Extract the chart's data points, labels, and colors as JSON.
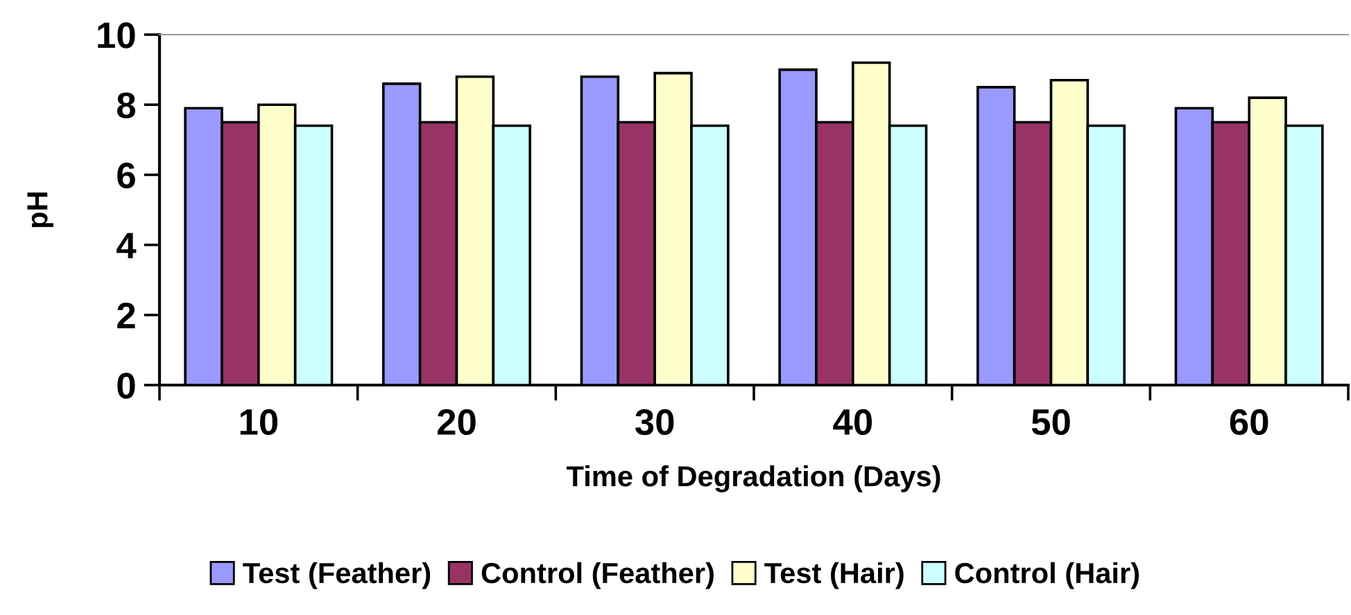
{
  "chart_data": {
    "type": "bar",
    "xlabel": "Time of Degradation (Days)",
    "ylabel": "pH",
    "categories": [
      "10",
      "20",
      "30",
      "40",
      "50",
      "60"
    ],
    "series": [
      {
        "name": "Test (Feather)",
        "color": "#9999ff",
        "values": [
          7.9,
          8.6,
          8.8,
          9.0,
          8.5,
          7.9
        ]
      },
      {
        "name": "Control (Feather)",
        "color": "#993366",
        "values": [
          7.5,
          7.5,
          7.5,
          7.5,
          7.5,
          7.5
        ]
      },
      {
        "name": "Test (Hair)",
        "color": "#ffffcc",
        "values": [
          8.0,
          8.8,
          8.9,
          9.2,
          8.7,
          8.2
        ]
      },
      {
        "name": "Control (Hair)",
        "color": "#ccffff",
        "values": [
          7.4,
          7.4,
          7.4,
          7.4,
          7.4,
          7.4
        ]
      }
    ],
    "ylim": [
      0,
      10
    ],
    "yticks": [
      0,
      2,
      4,
      6,
      8,
      10
    ],
    "grid": false,
    "legend": "bottom"
  }
}
